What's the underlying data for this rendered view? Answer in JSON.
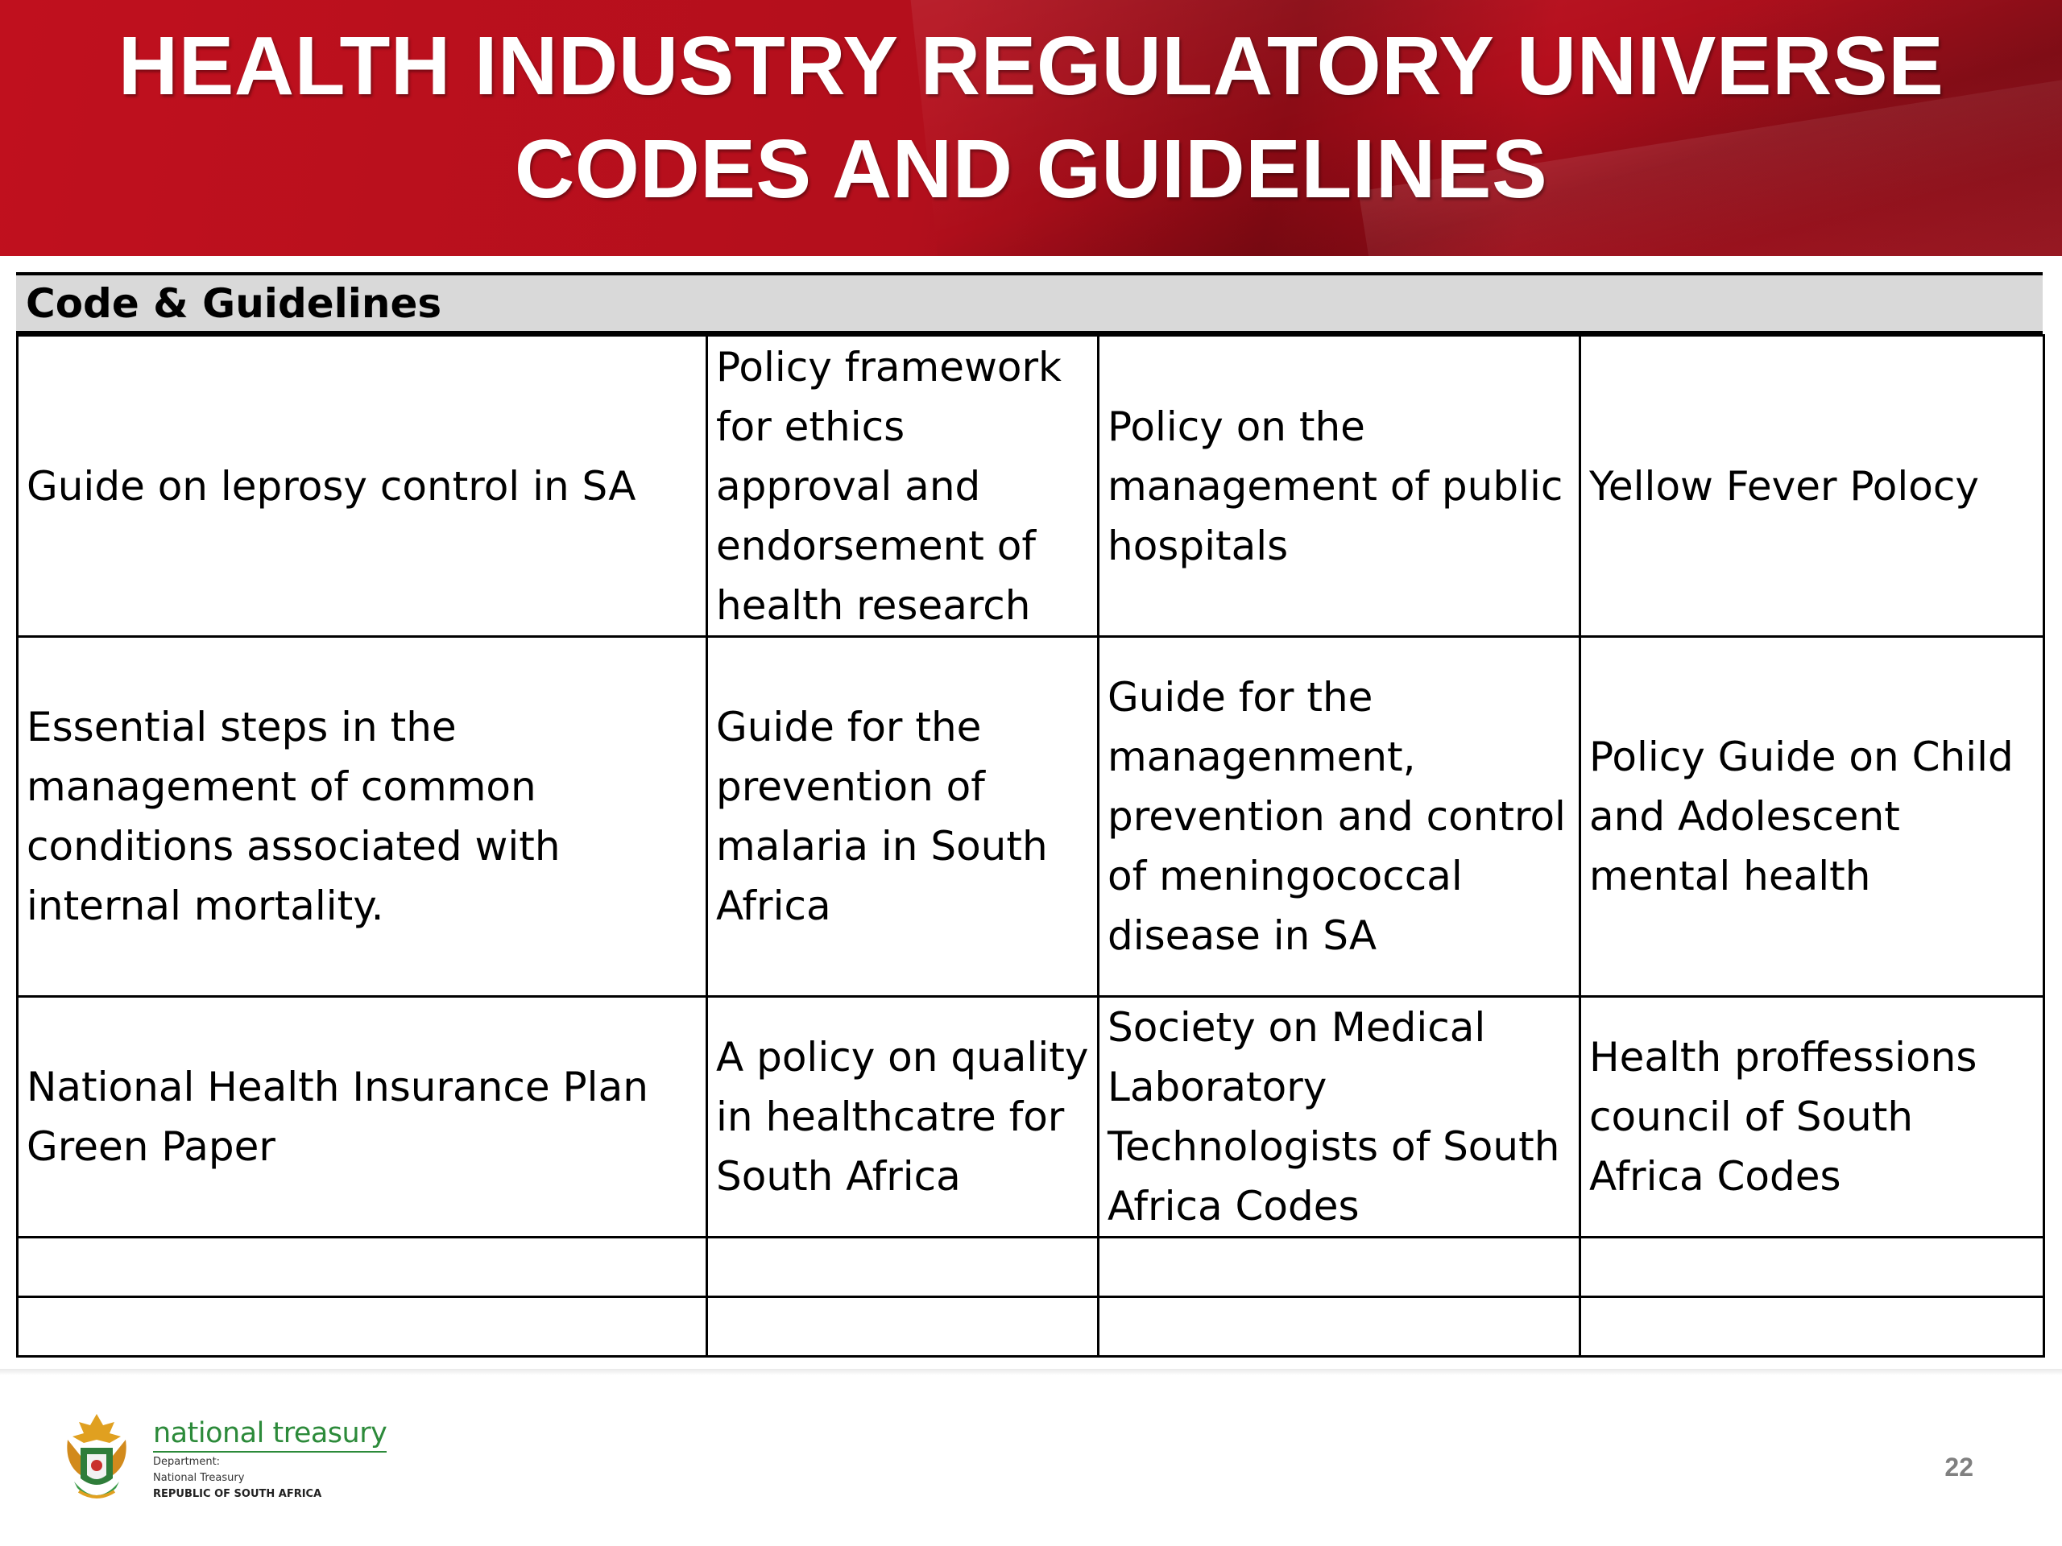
{
  "banner": {
    "title_line1": "HEALTH INDUSTRY REGULATORY UNIVERSE",
    "title_line2": "CODES AND GUIDELINES",
    "color": "#b30f1c"
  },
  "table": {
    "header": "Code & Guidelines",
    "header_bg": "#d9d9d9",
    "rows": [
      [
        "Guide on leprosy control in SA",
        "Policy framework for ethics approval and endorsement of health research",
        "Policy on the management of public hospitals",
        "Yellow Fever Polocy"
      ],
      [
        "Essential steps in the management of common conditions associated with internal mortality.",
        "Guide for the prevention of malaria in South Africa",
        "Guide for the managenment, prevention and control of meningococcal disease in SA",
        "Policy Guide on Child and Adolescent mental health"
      ],
      [
        "National Health Insurance Plan Green Paper",
        "A policy on quality in healthcatre for South Africa",
        "Society on Medical Laboratory Technologists of South Africa Codes",
        "Health proffessions council of South Africa Codes"
      ],
      [
        "",
        "",
        "",
        ""
      ],
      [
        "",
        "",
        "",
        ""
      ]
    ]
  },
  "footer": {
    "brand": "national treasury",
    "dept_line1": "Department:",
    "dept_line2": "National Treasury",
    "dept_line3": "REPUBLIC OF SOUTH AFRICA",
    "brand_color": "#2c8a3a",
    "emblem_icon": "coat-of-arms-icon",
    "page_number": "22"
  }
}
